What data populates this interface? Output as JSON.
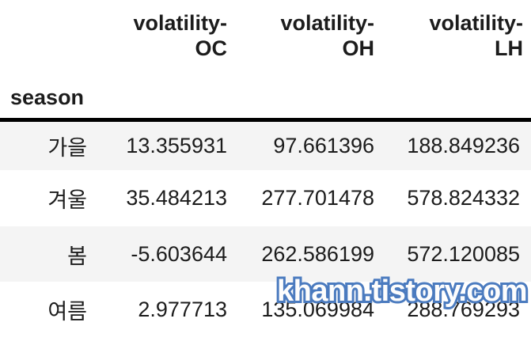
{
  "chart_data": {
    "type": "table",
    "title": "",
    "index_name": "season",
    "columns": [
      "volatility-OC",
      "volatility-OH",
      "volatility-LH"
    ],
    "rows": [
      {
        "index": "가을",
        "values": [
          13.355931,
          97.661396,
          188.849236
        ]
      },
      {
        "index": "겨울",
        "values": [
          35.484213,
          277.701478,
          578.824332
        ]
      },
      {
        "index": "봄",
        "values": [
          -5.603644,
          262.586199,
          572.120085
        ]
      },
      {
        "index": "여름",
        "values": [
          2.977713,
          135.069984,
          288.769293
        ]
      }
    ],
    "layout_hints": {
      "header_rule": "thick-black",
      "zebra_striping": "odd-rows-gray",
      "value_alignment": "right"
    }
  },
  "display": {
    "index_name": "season",
    "columns": [
      {
        "line1": "volatility-",
        "line2": "OC"
      },
      {
        "line1": "volatility-",
        "line2": "OH"
      },
      {
        "line1": "volatility-",
        "line2": "LH"
      }
    ]
  },
  "watermark": {
    "text": "khann.tistory.com",
    "stroke_color": "#4b7bbf",
    "fill_color": "#fdfdfd"
  },
  "colors": {
    "stripe": "#f4f4f4",
    "header_border": "#000000",
    "text": "#1c1c1c",
    "background": "#ffffff"
  }
}
